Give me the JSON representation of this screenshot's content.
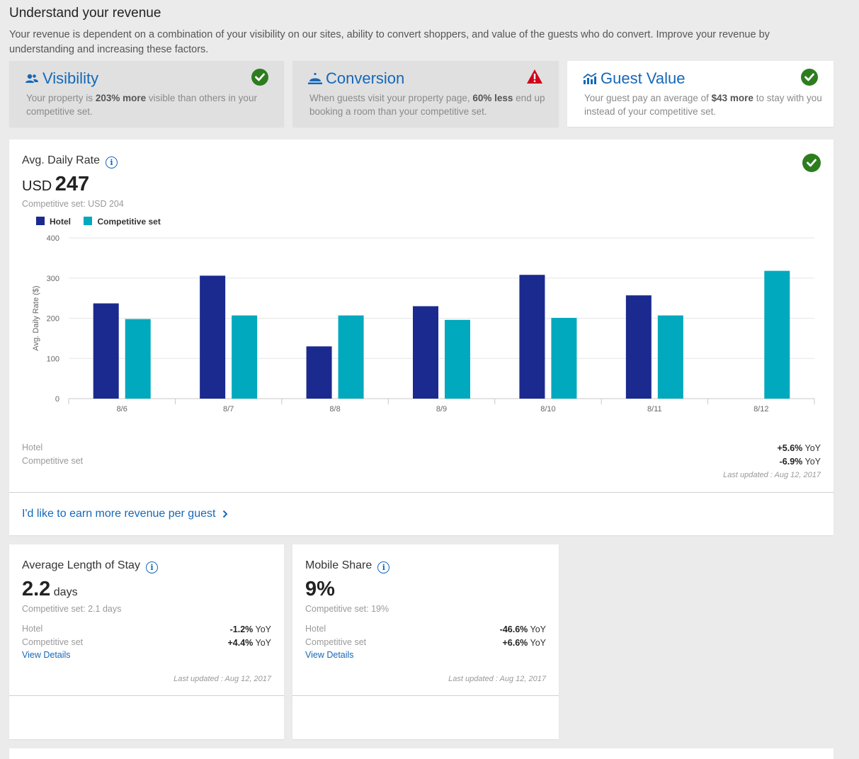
{
  "header": {
    "title": "Understand your revenue",
    "description": "Your revenue is dependent on a combination of your visibility on our sites, ability to convert shoppers, and value of the guests who do convert. Improve your revenue by understanding and increasing these factors."
  },
  "tabs": [
    {
      "label": "Visibility",
      "status": "good",
      "desc_pre": "Your property is ",
      "desc_bold": "203% more",
      "desc_post": " visible than others in your competitive set."
    },
    {
      "label": "Conversion",
      "status": "warning",
      "desc_pre": "When guests visit your property page, ",
      "desc_bold": "60% less",
      "desc_post": " end up booking a room than your competitive set."
    },
    {
      "label": "Guest Value",
      "status": "good",
      "desc_pre": "Your guest pay an average of ",
      "desc_bold": "$43 more",
      "desc_post": " to stay with you instead of your competitive set."
    }
  ],
  "adr": {
    "label": "Avg. Daily Rate",
    "currency": "USD",
    "value": "247",
    "comp_text": "Competitive set: USD 204",
    "hotel_label": "Hotel",
    "comp_label": "Competitive set",
    "hotel_yoy": "+5.6%",
    "comp_yoy": "-6.9%",
    "yoy_suffix": "YoY",
    "updated": "Last updated : Aug 12, 2017",
    "cta": "I'd like to earn more revenue per guest"
  },
  "chart_data": {
    "type": "bar",
    "categories": [
      "8/6",
      "8/7",
      "8/8",
      "8/9",
      "8/10",
      "8/11",
      "8/12"
    ],
    "series": [
      {
        "name": "Hotel",
        "color": "#1a2a8f",
        "values": [
          237,
          306,
          130,
          230,
          308,
          257,
          null
        ]
      },
      {
        "name": "Competitive set",
        "color": "#00a9bd",
        "values": [
          198,
          207,
          207,
          196,
          201,
          207,
          318
        ]
      }
    ],
    "ylabel": "Avg. Daily Rate ($)",
    "ylim": [
      0,
      400
    ],
    "yticks": [
      0,
      100,
      200,
      300,
      400
    ],
    "legend": "top-left",
    "grid": true
  },
  "los": {
    "label": "Average Length of Stay",
    "value": "2.2",
    "unit": "days",
    "comp_text": "Competitive set: 2.1 days",
    "hotel_label": "Hotel",
    "comp_label": "Competitive set",
    "hotel_yoy": "-1.2%",
    "comp_yoy": "+4.4%",
    "yoy_suffix": "YoY",
    "details": "View Details",
    "updated": "Last updated : Aug 12, 2017"
  },
  "mobile": {
    "label": "Mobile Share",
    "value": "9%",
    "comp_text": "Competitive set: 19%",
    "hotel_label": "Hotel",
    "comp_label": "Competitive set",
    "hotel_yoy": "-46.6%",
    "comp_yoy": "+6.6%",
    "yoy_suffix": "YoY",
    "details": "View Details",
    "updated": "Last updated : Aug 12, 2017"
  }
}
